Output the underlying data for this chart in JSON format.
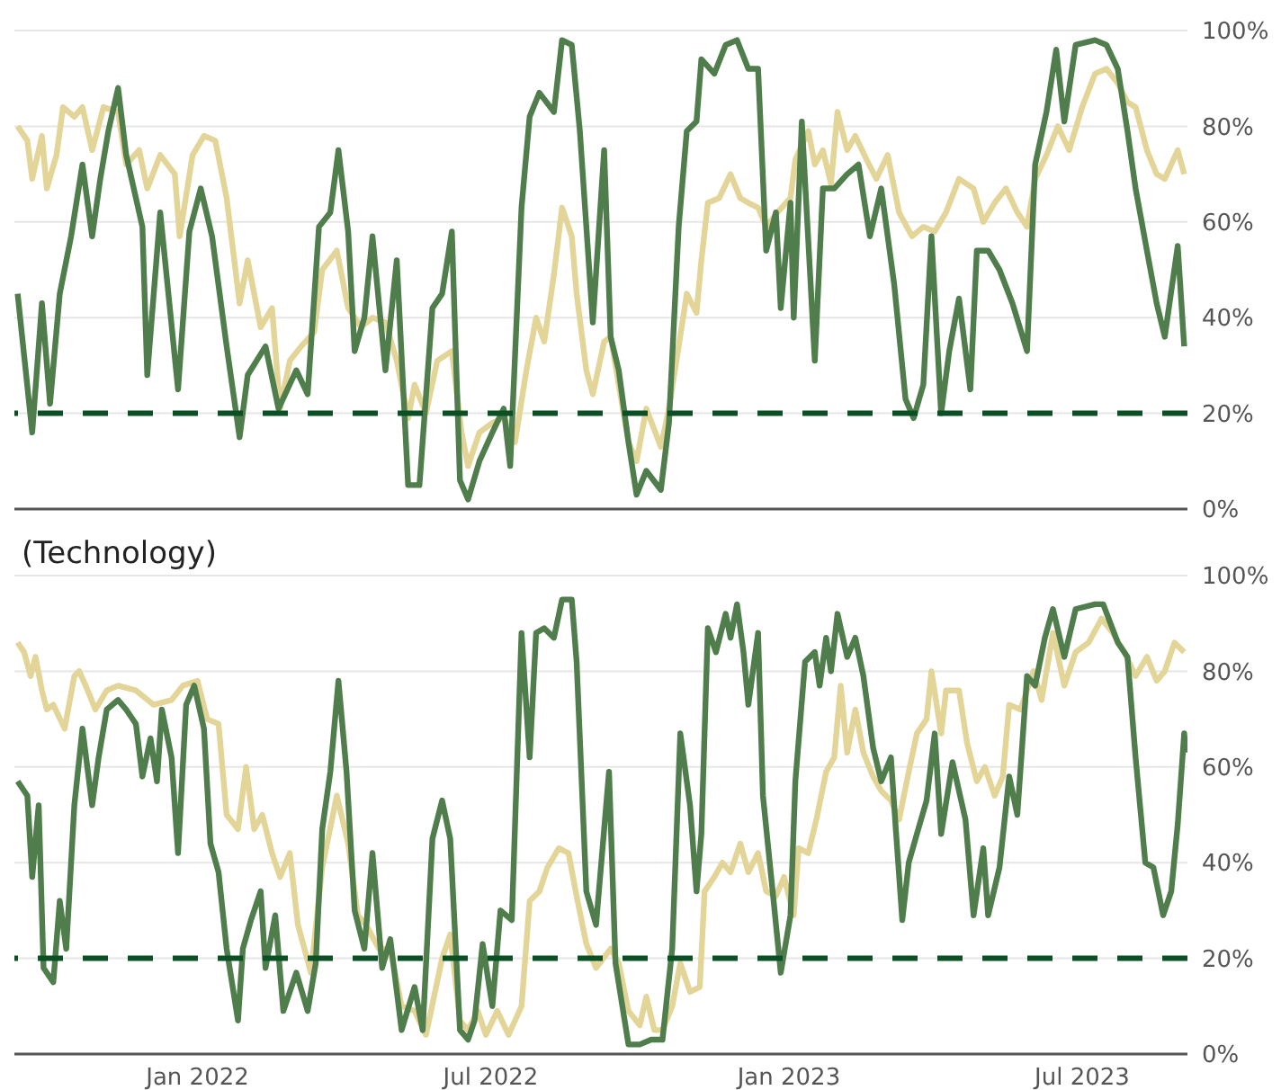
{
  "chart_data": [
    {
      "type": "line",
      "xlim": [
        "2021-09-10",
        "2023-09-04"
      ],
      "ylim": [
        0,
        100
      ],
      "yticks": [
        {
          "value": 0,
          "label": "0%"
        },
        {
          "value": 20,
          "label": "20%"
        },
        {
          "value": 40,
          "label": "40%"
        },
        {
          "value": 60,
          "label": "60%"
        },
        {
          "value": 80,
          "label": "80%"
        },
        {
          "value": 100,
          "label": "100%"
        }
      ],
      "grid": "y",
      "tick_labels": "y",
      "line_style": "solid",
      "ref_lines": [
        {
          "axis": "y",
          "value": 20,
          "color": "#0b4f24",
          "line_style": "dashed"
        }
      ],
      "series": [
        {
          "color": "#e2d597",
          "x": [
            "2021-09-12",
            "2021-09-18",
            "2021-09-21",
            "2021-09-27",
            "2021-09-30",
            "2021-10-06",
            "2021-10-10",
            "2021-10-17",
            "2021-10-22",
            "2021-10-28",
            "2021-11-04",
            "2021-11-13",
            "2021-11-18",
            "2021-11-26",
            "2021-12-01",
            "2021-12-09",
            "2021-12-18",
            "2021-12-21",
            "2021-12-29",
            "2022-01-05",
            "2022-01-12",
            "2022-01-19",
            "2022-01-27",
            "2022-02-01",
            "2022-02-09",
            "2022-02-16",
            "2022-02-21",
            "2022-02-27",
            "2022-03-06",
            "2022-03-14",
            "2022-03-19",
            "2022-03-28",
            "2022-04-04",
            "2022-04-12",
            "2022-04-19",
            "2022-04-27",
            "2022-05-04",
            "2022-05-11",
            "2022-05-15",
            "2022-05-22",
            "2022-05-29",
            "2022-06-07",
            "2022-06-13",
            "2022-06-17",
            "2022-06-24",
            "2022-07-02",
            "2022-07-09",
            "2022-07-16",
            "2022-07-23",
            "2022-07-29",
            "2022-08-03",
            "2022-08-09",
            "2022-08-14",
            "2022-08-20",
            "2022-08-23",
            "2022-08-29",
            "2022-09-02",
            "2022-09-09",
            "2022-09-13",
            "2022-09-18",
            "2022-09-24",
            "2022-09-29",
            "2022-10-05",
            "2022-10-14",
            "2022-10-19",
            "2022-10-25",
            "2022-10-30",
            "2022-11-05",
            "2022-11-08",
            "2022-11-12",
            "2022-11-19",
            "2022-11-26",
            "2022-12-02",
            "2022-12-07",
            "2022-12-13",
            "2022-12-18",
            "2022-12-25",
            "2023-01-02",
            "2023-01-05",
            "2023-01-13",
            "2023-01-17",
            "2023-01-22",
            "2023-01-27",
            "2023-01-31",
            "2023-02-06",
            "2023-02-11",
            "2023-02-18",
            "2023-02-24",
            "2023-03-03",
            "2023-03-10",
            "2023-03-18",
            "2023-03-25",
            "2023-04-01",
            "2023-04-08",
            "2023-04-16",
            "2023-04-25",
            "2023-05-01",
            "2023-05-08",
            "2023-05-15",
            "2023-05-22",
            "2023-05-28",
            "2023-06-02",
            "2023-06-09",
            "2023-06-16",
            "2023-06-23",
            "2023-07-01",
            "2023-07-09",
            "2023-07-16",
            "2023-07-23",
            "2023-07-29",
            "2023-08-03",
            "2023-08-10",
            "2023-08-16",
            "2023-08-21",
            "2023-08-29",
            "2023-09-02"
          ],
          "values": [
            80,
            77,
            69,
            78,
            67,
            74,
            84,
            82,
            84,
            75,
            84,
            83,
            72,
            75,
            67,
            74,
            70,
            57,
            74,
            78,
            77,
            65,
            43,
            52,
            38,
            42,
            21,
            31,
            34,
            37,
            50,
            54,
            42,
            38,
            40,
            39,
            31,
            19,
            26,
            20,
            31,
            33,
            16,
            9,
            16,
            18,
            19,
            14,
            29,
            40,
            35,
            49,
            63,
            57,
            45,
            29,
            24,
            35,
            36,
            26,
            14,
            10,
            21,
            13,
            21,
            34,
            45,
            41,
            52,
            64,
            65,
            70,
            65,
            64,
            63,
            59,
            62,
            65,
            73,
            79,
            72,
            75,
            68,
            83,
            75,
            78,
            73,
            69,
            74,
            62,
            57,
            59,
            58,
            62,
            69,
            67,
            60,
            64,
            67,
            62,
            59,
            69,
            74,
            80,
            75,
            84,
            91,
            92,
            89,
            85,
            84,
            75,
            70,
            69,
            75,
            70
          ]
        },
        {
          "color": "#4f7d4c",
          "x": [
            "2021-09-12",
            "2021-09-21",
            "2021-09-27",
            "2021-10-02",
            "2021-10-08",
            "2021-10-15",
            "2021-10-22",
            "2021-10-28",
            "2021-11-02",
            "2021-11-07",
            "2021-11-13",
            "2021-11-18",
            "2021-11-28",
            "2021-12-01",
            "2021-12-09",
            "2021-12-20",
            "2021-12-27",
            "2022-01-03",
            "2022-01-10",
            "2022-01-19",
            "2022-01-27",
            "2022-02-01",
            "2022-02-12",
            "2022-02-20",
            "2022-03-03",
            "2022-03-10",
            "2022-03-17",
            "2022-03-24",
            "2022-03-29",
            "2022-04-04",
            "2022-04-08",
            "2022-04-14",
            "2022-04-19",
            "2022-04-27",
            "2022-05-04",
            "2022-05-11",
            "2022-05-18",
            "2022-05-26",
            "2022-06-01",
            "2022-06-07",
            "2022-06-12",
            "2022-06-17",
            "2022-06-24",
            "2022-07-02",
            "2022-07-09",
            "2022-07-13",
            "2022-07-20",
            "2022-07-25",
            "2022-07-31",
            "2022-08-09",
            "2022-08-14",
            "2022-08-20",
            "2022-08-25",
            "2022-09-02",
            "2022-09-09",
            "2022-09-13",
            "2022-09-18",
            "2022-09-24",
            "2022-09-29",
            "2022-10-05",
            "2022-10-14",
            "2022-10-19",
            "2022-10-25",
            "2022-10-30",
            "2022-11-05",
            "2022-11-08",
            "2022-11-16",
            "2022-11-23",
            "2022-11-30",
            "2022-12-07",
            "2022-12-13",
            "2022-12-18",
            "2022-12-24",
            "2022-12-27",
            "2023-01-02",
            "2023-01-04",
            "2023-01-09",
            "2023-01-17",
            "2023-01-22",
            "2023-01-29",
            "2023-02-06",
            "2023-02-13",
            "2023-02-20",
            "2023-02-27",
            "2023-03-07",
            "2023-03-14",
            "2023-03-19",
            "2023-03-25",
            "2023-03-30",
            "2023-04-05",
            "2023-04-10",
            "2023-04-16",
            "2023-04-23",
            "2023-04-27",
            "2023-05-04",
            "2023-05-11",
            "2023-05-19",
            "2023-05-28",
            "2023-06-02",
            "2023-06-09",
            "2023-06-15",
            "2023-06-20",
            "2023-06-27",
            "2023-07-09",
            "2023-07-16",
            "2023-07-23",
            "2023-07-29",
            "2023-08-03",
            "2023-08-10",
            "2023-08-16",
            "2023-08-21",
            "2023-08-29",
            "2023-09-02"
          ],
          "values": [
            45,
            16,
            43,
            22,
            45,
            57,
            72,
            57,
            69,
            79,
            88,
            74,
            59,
            28,
            62,
            25,
            58,
            67,
            57,
            34,
            15,
            28,
            34,
            21,
            29,
            24,
            59,
            62,
            75,
            58,
            33,
            40,
            57,
            29,
            52,
            5,
            5,
            42,
            45,
            58,
            6,
            2,
            10,
            16,
            21,
            9,
            63,
            82,
            87,
            83,
            98,
            97,
            79,
            39,
            75,
            36,
            29,
            14,
            3,
            8,
            4,
            18,
            59,
            79,
            81,
            94,
            91,
            97,
            98,
            92,
            92,
            54,
            62,
            42,
            64,
            40,
            81,
            31,
            67,
            67,
            70,
            72,
            57,
            67,
            47,
            23,
            19,
            26,
            57,
            20,
            33,
            44,
            25,
            54,
            54,
            50,
            43,
            33,
            72,
            83,
            96,
            81,
            97,
            98,
            97,
            92,
            79,
            67,
            54,
            43,
            36,
            55,
            34
          ]
        }
      ]
    },
    {
      "type": "line",
      "title": "(Technology)",
      "xlim": [
        "2021-09-10",
        "2023-09-04"
      ],
      "xticks": [
        {
          "value": "2022-01-01",
          "label": "Jan 2022"
        },
        {
          "value": "2022-07-01",
          "label": "Jul 2022"
        },
        {
          "value": "2023-01-01",
          "label": "Jan 2023"
        },
        {
          "value": "2023-07-01",
          "label": "Jul 2023"
        }
      ],
      "ylim": [
        0,
        100
      ],
      "yticks": [
        {
          "value": 0,
          "label": "0%"
        },
        {
          "value": 20,
          "label": "20%"
        },
        {
          "value": 40,
          "label": "40%"
        },
        {
          "value": 60,
          "label": "60%"
        },
        {
          "value": 80,
          "label": "80%"
        },
        {
          "value": 100,
          "label": "100%"
        }
      ],
      "grid": "y",
      "line_style": "solid",
      "ref_lines": [
        {
          "axis": "y",
          "value": 20,
          "color": "#0b4f24",
          "line_style": "dashed"
        }
      ],
      "series": [
        {
          "color": "#e2d597",
          "x": [
            "2021-09-12",
            "2021-09-16",
            "2021-09-20",
            "2021-09-23",
            "2021-09-27",
            "2021-09-30",
            "2021-10-04",
            "2021-10-11",
            "2021-10-17",
            "2021-10-20",
            "2021-10-24",
            "2021-10-30",
            "2021-11-06",
            "2021-11-13",
            "2021-11-24",
            "2021-12-05",
            "2021-12-16",
            "2021-12-23",
            "2022-01-01",
            "2022-01-07",
            "2022-01-14",
            "2022-01-19",
            "2022-01-26",
            "2022-01-31",
            "2022-02-05",
            "2022-02-10",
            "2022-02-16",
            "2022-02-21",
            "2022-02-27",
            "2022-03-04",
            "2022-03-12",
            "2022-03-19",
            "2022-03-28",
            "2022-04-04",
            "2022-04-10",
            "2022-04-15",
            "2022-04-23",
            "2022-04-30",
            "2022-05-07",
            "2022-05-15",
            "2022-05-22",
            "2022-06-01",
            "2022-06-06",
            "2022-06-12",
            "2022-06-17",
            "2022-06-23",
            "2022-06-28",
            "2022-07-05",
            "2022-07-12",
            "2022-07-20",
            "2022-07-25",
            "2022-07-31",
            "2022-08-05",
            "2022-08-12",
            "2022-08-18",
            "2022-08-23",
            "2022-08-29",
            "2022-09-04",
            "2022-09-13",
            "2022-09-18",
            "2022-09-24",
            "2022-10-01",
            "2022-10-05",
            "2022-10-10",
            "2022-10-15",
            "2022-10-21",
            "2022-10-26",
            "2022-11-01",
            "2022-11-07",
            "2022-11-10",
            "2022-11-16",
            "2022-11-21",
            "2022-11-26",
            "2022-12-02",
            "2022-12-07",
            "2022-12-13",
            "2022-12-18",
            "2022-12-24",
            "2022-12-29",
            "2023-01-04",
            "2023-01-07",
            "2023-01-13",
            "2023-01-18",
            "2023-01-24",
            "2023-01-29",
            "2023-02-02",
            "2023-02-06",
            "2023-02-11",
            "2023-02-16",
            "2023-02-22",
            "2023-02-27",
            "2023-03-05",
            "2023-03-10",
            "2023-03-16",
            "2023-03-21",
            "2023-03-27",
            "2023-03-30",
            "2023-04-05",
            "2023-04-08",
            "2023-04-16",
            "2023-04-21",
            "2023-04-27",
            "2023-05-02",
            "2023-05-08",
            "2023-05-13",
            "2023-05-17",
            "2023-05-24",
            "2023-06-01",
            "2023-06-06",
            "2023-06-13",
            "2023-06-20",
            "2023-06-27",
            "2023-07-05",
            "2023-07-13",
            "2023-07-20",
            "2023-07-27",
            "2023-08-03",
            "2023-08-10",
            "2023-08-16",
            "2023-08-21",
            "2023-08-27",
            "2023-09-02"
          ],
          "values": [
            86,
            84,
            79,
            83,
            76,
            72,
            73,
            68,
            79,
            80,
            77,
            72,
            76,
            77,
            76,
            73,
            74,
            77,
            78,
            70,
            69,
            50,
            47,
            60,
            47,
            50,
            42,
            37,
            42,
            27,
            17,
            39,
            54,
            44,
            29,
            27,
            22,
            22,
            10,
            9,
            4,
            20,
            25,
            7,
            5,
            9,
            4,
            9,
            4,
            10,
            32,
            34,
            39,
            43,
            42,
            33,
            23,
            18,
            22,
            19,
            9,
            6,
            12,
            5,
            5,
            10,
            19,
            13,
            14,
            34,
            37,
            40,
            38,
            44,
            38,
            42,
            34,
            33,
            37,
            29,
            43,
            42,
            49,
            59,
            62,
            77,
            63,
            72,
            63,
            58,
            55,
            53,
            49,
            59,
            67,
            70,
            80,
            67,
            76,
            76,
            65,
            57,
            60,
            54,
            58,
            73,
            72,
            80,
            74,
            88,
            77,
            84,
            86,
            91,
            88,
            84,
            79,
            83,
            78,
            80,
            86,
            84
          ]
        },
        {
          "color": "#4f7d4c",
          "x": [
            "2021-09-12",
            "2021-09-18",
            "2021-09-21",
            "2021-09-25",
            "2021-09-28",
            "2021-10-04",
            "2021-10-08",
            "2021-10-12",
            "2021-10-17",
            "2021-10-22",
            "2021-10-28",
            "2021-11-01",
            "2021-11-06",
            "2021-11-13",
            "2021-11-18",
            "2021-11-24",
            "2021-11-28",
            "2021-12-03",
            "2021-12-07",
            "2021-12-10",
            "2021-12-16",
            "2021-12-20",
            "2021-12-25",
            "2021-12-30",
            "2022-01-05",
            "2022-01-09",
            "2022-01-14",
            "2022-01-19",
            "2022-01-26",
            "2022-01-29",
            "2022-02-03",
            "2022-02-09",
            "2022-02-12",
            "2022-02-18",
            "2022-02-23",
            "2022-03-03",
            "2022-03-10",
            "2022-03-15",
            "2022-03-19",
            "2022-03-24",
            "2022-03-29",
            "2022-04-03",
            "2022-04-08",
            "2022-04-14",
            "2022-04-19",
            "2022-04-25",
            "2022-04-30",
            "2022-05-07",
            "2022-05-15",
            "2022-05-20",
            "2022-05-26",
            "2022-06-01",
            "2022-06-06",
            "2022-06-12",
            "2022-06-17",
            "2022-06-21",
            "2022-06-26",
            "2022-07-02",
            "2022-07-07",
            "2022-07-14",
            "2022-07-20",
            "2022-07-25",
            "2022-07-29",
            "2022-08-03",
            "2022-08-09",
            "2022-08-14",
            "2022-08-20",
            "2022-08-23",
            "2022-08-29",
            "2022-09-04",
            "2022-09-12",
            "2022-09-16",
            "2022-09-24",
            "2022-10-01",
            "2022-10-08",
            "2022-10-15",
            "2022-10-21",
            "2022-10-26",
            "2022-11-01",
            "2022-11-05",
            "2022-11-08",
            "2022-11-12",
            "2022-11-17",
            "2022-11-23",
            "2022-11-26",
            "2022-11-30",
            "2022-12-04",
            "2022-12-07",
            "2022-12-13",
            "2022-12-16",
            "2022-12-22",
            "2022-12-27",
            "2023-01-02",
            "2023-01-05",
            "2023-01-11",
            "2023-01-17",
            "2023-01-20",
            "2023-01-24",
            "2023-01-27",
            "2023-01-31",
            "2023-02-06",
            "2023-02-11",
            "2023-02-16",
            "2023-02-22",
            "2023-02-27",
            "2023-03-05",
            "2023-03-08",
            "2023-03-12",
            "2023-03-16",
            "2023-03-21",
            "2023-03-27",
            "2023-04-01",
            "2023-04-05",
            "2023-04-12",
            "2023-04-20",
            "2023-04-25",
            "2023-05-01",
            "2023-05-04",
            "2023-05-11",
            "2023-05-17",
            "2023-05-22",
            "2023-05-28",
            "2023-06-02",
            "2023-06-08",
            "2023-06-13",
            "2023-06-20",
            "2023-06-27",
            "2023-07-09",
            "2023-07-14",
            "2023-07-23",
            "2023-07-29",
            "2023-08-03",
            "2023-08-09",
            "2023-08-14",
            "2023-08-20",
            "2023-08-25",
            "2023-08-29",
            "2023-09-02",
            "2023-09-03"
          ],
          "values": [
            57,
            54,
            37,
            52,
            18,
            15,
            32,
            22,
            52,
            68,
            52,
            62,
            72,
            74,
            72,
            69,
            58,
            66,
            57,
            72,
            62,
            42,
            73,
            77,
            68,
            44,
            38,
            22,
            7,
            22,
            28,
            34,
            18,
            29,
            9,
            17,
            9,
            19,
            47,
            59,
            78,
            59,
            30,
            22,
            42,
            18,
            24,
            5,
            14,
            5,
            45,
            53,
            45,
            5,
            3,
            7,
            23,
            10,
            30,
            28,
            88,
            62,
            88,
            89,
            87,
            95,
            95,
            82,
            34,
            27,
            59,
            19,
            2,
            2,
            3,
            3,
            22,
            67,
            52,
            34,
            46,
            89,
            84,
            92,
            87,
            94,
            84,
            73,
            88,
            54,
            34,
            17,
            29,
            57,
            82,
            84,
            77,
            87,
            80,
            92,
            83,
            87,
            79,
            64,
            57,
            62,
            47,
            28,
            40,
            46,
            53,
            67,
            46,
            61,
            49,
            29,
            43,
            29,
            39,
            58,
            50,
            79,
            77,
            87,
            93,
            83,
            93,
            94,
            94,
            86,
            83,
            62,
            40,
            39,
            29,
            34,
            48,
            67,
            63
          ]
        }
      ]
    }
  ]
}
